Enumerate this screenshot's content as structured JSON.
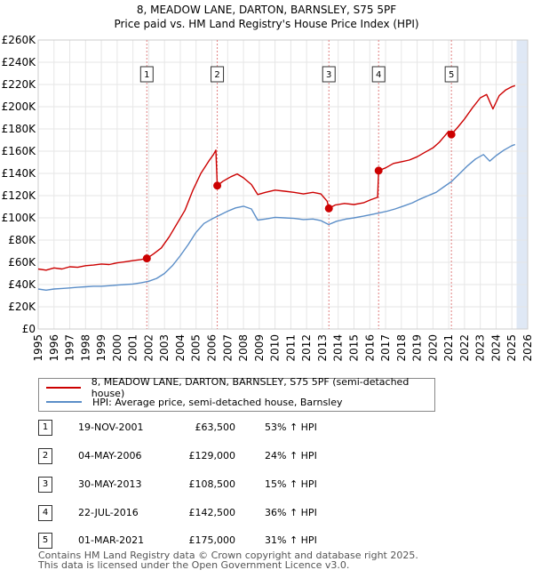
{
  "chart_data": {
    "type": "line",
    "title": "8, MEADOW LANE, DARTON, BARNSLEY, S75 5PF",
    "subtitle": "Price paid vs. HM Land Registry's House Price Index (HPI)",
    "y_ticks": [
      "£0",
      "£20K",
      "£40K",
      "£60K",
      "£80K",
      "£100K",
      "£120K",
      "£140K",
      "£160K",
      "£180K",
      "£200K",
      "£220K",
      "£240K",
      "£260K"
    ],
    "x_ticks": [
      "1995",
      "1996",
      "1997",
      "1998",
      "1999",
      "2000",
      "2001",
      "2002",
      "2003",
      "2004",
      "2005",
      "2006",
      "2007",
      "2008",
      "2009",
      "2010",
      "2011",
      "2012",
      "2013",
      "2014",
      "2015",
      "2016",
      "2017",
      "2018",
      "2019",
      "2020",
      "2021",
      "2022",
      "2023",
      "2024",
      "2025",
      "2026"
    ],
    "xlim": [
      1995,
      2026
    ],
    "ylim": [
      0,
      260000
    ],
    "colors": {
      "property": "#cc0000",
      "hpi": "#5b8ec8",
      "shade": "#dfe8f5",
      "grid": "#e6e6e6",
      "vline": "#e08080"
    },
    "series": [
      {
        "name": "8, MEADOW LANE, DARTON, BARNSLEY, S75 5PF (semi-detached house)",
        "points": [
          [
            1995.0,
            54000
          ],
          [
            1995.5,
            53000
          ],
          [
            1996.0,
            55000
          ],
          [
            1996.5,
            54000
          ],
          [
            1997.0,
            56000
          ],
          [
            1997.5,
            55500
          ],
          [
            1998.0,
            57000
          ],
          [
            1998.5,
            57500
          ],
          [
            1999.0,
            58500
          ],
          [
            1999.5,
            58000
          ],
          [
            2000.0,
            59500
          ],
          [
            2000.5,
            60500
          ],
          [
            2001.0,
            61500
          ],
          [
            2001.5,
            62500
          ],
          [
            2001.88,
            63500
          ],
          [
            2002.3,
            67500
          ],
          [
            2002.8,
            73000
          ],
          [
            2003.3,
            83000
          ],
          [
            2003.8,
            95000
          ],
          [
            2004.3,
            107000
          ],
          [
            2004.8,
            125000
          ],
          [
            2005.3,
            140000
          ],
          [
            2005.8,
            151000
          ],
          [
            2006.1,
            157000
          ],
          [
            2006.25,
            161000
          ],
          [
            2006.34,
            129000
          ],
          [
            2006.7,
            133000
          ],
          [
            2007.2,
            137000
          ],
          [
            2007.6,
            139500
          ],
          [
            2008.0,
            136000
          ],
          [
            2008.5,
            130000
          ],
          [
            2008.9,
            121000
          ],
          [
            2009.4,
            123000
          ],
          [
            2010.0,
            125000
          ],
          [
            2010.6,
            124000
          ],
          [
            2011.2,
            123000
          ],
          [
            2011.8,
            121500
          ],
          [
            2012.4,
            123000
          ],
          [
            2012.9,
            121500
          ],
          [
            2013.3,
            115000
          ],
          [
            2013.41,
            108500
          ],
          [
            2013.8,
            111500
          ],
          [
            2014.4,
            113000
          ],
          [
            2015.0,
            112000
          ],
          [
            2015.6,
            113500
          ],
          [
            2016.1,
            116500
          ],
          [
            2016.5,
            118500
          ],
          [
            2016.56,
            142500
          ],
          [
            2017.0,
            145000
          ],
          [
            2017.5,
            149000
          ],
          [
            2018.0,
            150500
          ],
          [
            2018.5,
            152000
          ],
          [
            2019.0,
            155000
          ],
          [
            2019.5,
            159000
          ],
          [
            2020.0,
            163000
          ],
          [
            2020.4,
            168000
          ],
          [
            2020.7,
            173000
          ],
          [
            2021.0,
            178000
          ],
          [
            2021.17,
            175000
          ],
          [
            2021.6,
            182000
          ],
          [
            2022.0,
            189000
          ],
          [
            2022.5,
            199000
          ],
          [
            2023.0,
            208000
          ],
          [
            2023.4,
            211000
          ],
          [
            2023.8,
            198000
          ],
          [
            2024.2,
            210000
          ],
          [
            2024.6,
            215000
          ],
          [
            2025.0,
            218000
          ],
          [
            2025.2,
            219000
          ]
        ]
      },
      {
        "name": "HPI: Average price, semi-detached house, Barnsley",
        "points": [
          [
            1995.0,
            36000
          ],
          [
            1995.5,
            35000
          ],
          [
            1996.0,
            36000
          ],
          [
            1996.5,
            36500
          ],
          [
            1997.0,
            37000
          ],
          [
            1997.5,
            37500
          ],
          [
            1998.0,
            38000
          ],
          [
            1998.5,
            38500
          ],
          [
            1999.0,
            38500
          ],
          [
            1999.5,
            39000
          ],
          [
            2000.0,
            39500
          ],
          [
            2000.5,
            40000
          ],
          [
            2001.0,
            40500
          ],
          [
            2001.5,
            41500
          ],
          [
            2002.0,
            43000
          ],
          [
            2002.5,
            45500
          ],
          [
            2003.0,
            50000
          ],
          [
            2003.5,
            57000
          ],
          [
            2004.0,
            66000
          ],
          [
            2004.5,
            76000
          ],
          [
            2005.0,
            87000
          ],
          [
            2005.5,
            95000
          ],
          [
            2006.0,
            99000
          ],
          [
            2006.5,
            102500
          ],
          [
            2007.0,
            106000
          ],
          [
            2007.5,
            109000
          ],
          [
            2008.0,
            110500
          ],
          [
            2008.5,
            108000
          ],
          [
            2008.9,
            98000
          ],
          [
            2009.4,
            99000
          ],
          [
            2010.0,
            100500
          ],
          [
            2010.6,
            100000
          ],
          [
            2011.2,
            99500
          ],
          [
            2011.8,
            98500
          ],
          [
            2012.4,
            99000
          ],
          [
            2012.9,
            97500
          ],
          [
            2013.4,
            94000
          ],
          [
            2013.9,
            97000
          ],
          [
            2014.5,
            99000
          ],
          [
            2015.0,
            100000
          ],
          [
            2015.6,
            101500
          ],
          [
            2016.1,
            103000
          ],
          [
            2016.6,
            104500
          ],
          [
            2017.1,
            106000
          ],
          [
            2017.6,
            108000
          ],
          [
            2018.2,
            111000
          ],
          [
            2018.7,
            113500
          ],
          [
            2019.2,
            117000
          ],
          [
            2019.7,
            120000
          ],
          [
            2020.2,
            123000
          ],
          [
            2020.7,
            128000
          ],
          [
            2021.2,
            133000
          ],
          [
            2021.7,
            140000
          ],
          [
            2022.2,
            147000
          ],
          [
            2022.7,
            153000
          ],
          [
            2023.2,
            157000
          ],
          [
            2023.6,
            151000
          ],
          [
            2024.0,
            156000
          ],
          [
            2024.5,
            161000
          ],
          [
            2025.0,
            165000
          ],
          [
            2025.2,
            166000
          ]
        ]
      }
    ],
    "sales": [
      {
        "label": "1",
        "x": 2001.88,
        "price": 63500
      },
      {
        "label": "2",
        "x": 2006.34,
        "price": 129000
      },
      {
        "label": "3",
        "x": 2013.41,
        "price": 108500
      },
      {
        "label": "4",
        "x": 2016.56,
        "price": 142500
      },
      {
        "label": "5",
        "x": 2021.17,
        "price": 175000
      }
    ],
    "shaded_range": [
      2025.3,
      2026
    ]
  },
  "legend": {
    "property": "8, MEADOW LANE, DARTON, BARNSLEY, S75 5PF (semi-detached house)",
    "hpi": "HPI: Average price, semi-detached house, Barnsley"
  },
  "table": [
    {
      "num": "1",
      "date": "19-NOV-2001",
      "price": "£63,500",
      "hpi": "53% ↑ HPI"
    },
    {
      "num": "2",
      "date": "04-MAY-2006",
      "price": "£129,000",
      "hpi": "24% ↑ HPI"
    },
    {
      "num": "3",
      "date": "30-MAY-2013",
      "price": "£108,500",
      "hpi": "15% ↑ HPI"
    },
    {
      "num": "4",
      "date": "22-JUL-2016",
      "price": "£142,500",
      "hpi": "36% ↑ HPI"
    },
    {
      "num": "5",
      "date": "01-MAR-2021",
      "price": "£175,000",
      "hpi": "31% ↑ HPI"
    }
  ],
  "footer": {
    "line1": "Contains HM Land Registry data © Crown copyright and database right 2025.",
    "line2": "This data is licensed under the Open Government Licence v3.0."
  }
}
